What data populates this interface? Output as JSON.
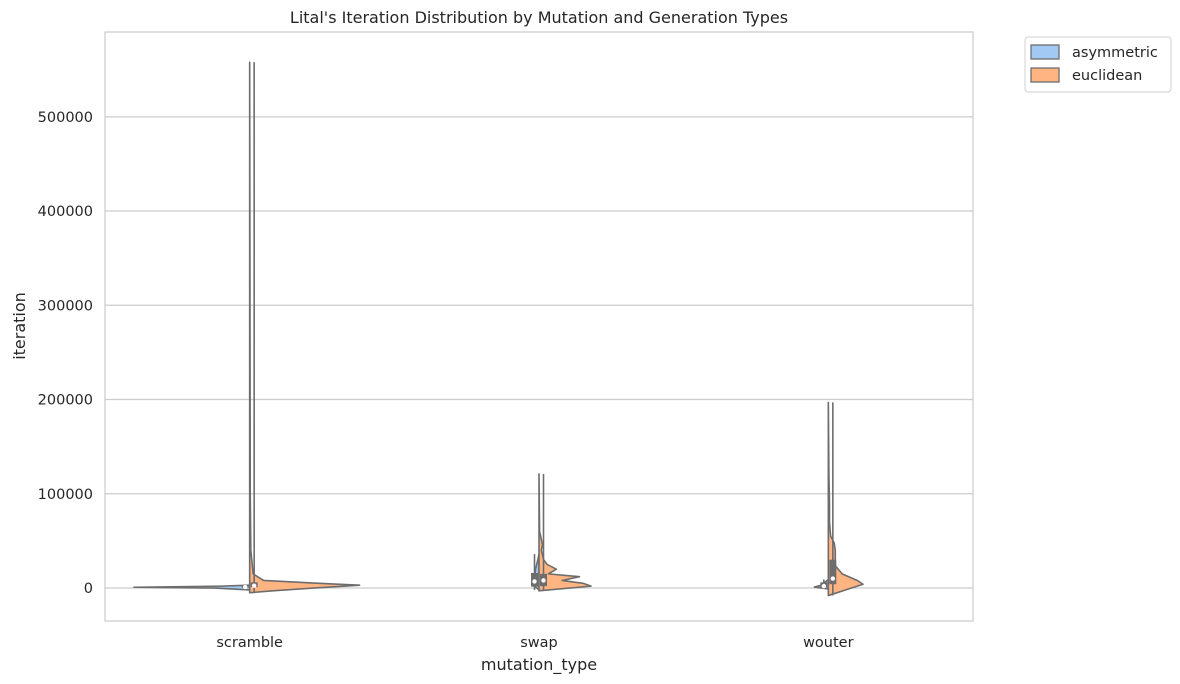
{
  "chart_data": {
    "type": "violin",
    "title": "Lital's Iteration Distribution by Mutation and Generation Types",
    "xlabel": "mutation_type",
    "ylabel": "iteration",
    "categories": [
      "scramble",
      "swap",
      "wouter"
    ],
    "ylim": [
      -35000,
      590000
    ],
    "yticks": [
      0,
      100000,
      200000,
      300000,
      400000,
      500000
    ],
    "ytick_labels": [
      "0",
      "100000",
      "200000",
      "300000",
      "400000",
      "500000"
    ],
    "grid": "horizontal",
    "split": true,
    "legend_placement": "outside upper right",
    "series": [
      {
        "name": "asymmetric",
        "color": "#a1c9f4",
        "groups": [
          {
            "category": "scramble",
            "min": -2000,
            "q1": 500,
            "median": 1000,
            "q3": 2500,
            "max": 3000,
            "density": [
              [
                -2000,
                0.0
              ],
              [
                0,
                0.3
              ],
              [
                800,
                1.0
              ],
              [
                2000,
                0.25
              ],
              [
                3000,
                0.0
              ]
            ]
          },
          {
            "category": "swap",
            "min": -2000,
            "q1": 1500,
            "median": 7000,
            "q3": 16000,
            "max": 36000,
            "density": [
              [
                -2000,
                0.0
              ],
              [
                3000,
                0.05
              ],
              [
                10000,
                0.04
              ],
              [
                20000,
                0.03
              ],
              [
                30000,
                0.01
              ],
              [
                36000,
                0.0
              ]
            ]
          },
          {
            "category": "wouter",
            "min": -1000,
            "q1": 500,
            "median": 2000,
            "q3": 6000,
            "max": 9000,
            "density": [
              [
                -1000,
                0.0
              ],
              [
                1000,
                0.12
              ],
              [
                3000,
                0.06
              ],
              [
                6000,
                0.03
              ],
              [
                9000,
                0.0
              ]
            ]
          }
        ]
      },
      {
        "name": "euclidean",
        "color": "#ffb482",
        "groups": [
          {
            "category": "scramble",
            "min": -5000,
            "q1": 1000,
            "median": 2500,
            "q3": 6000,
            "max": 558000,
            "density": [
              [
                -5000,
                0.0
              ],
              [
                -3000,
                0.2
              ],
              [
                0,
                0.55
              ],
              [
                3000,
                0.95
              ],
              [
                5000,
                0.6
              ],
              [
                8000,
                0.12
              ],
              [
                15000,
                0.03
              ],
              [
                40000,
                0.01
              ],
              [
                100000,
                0.005
              ],
              [
                558000,
                0.0
              ]
            ]
          },
          {
            "category": "swap",
            "min": -3000,
            "q1": 2000,
            "median": 8000,
            "q3": 15000,
            "max": 121000,
            "density": [
              [
                -3000,
                0.0
              ],
              [
                2000,
                0.45
              ],
              [
                5000,
                0.38
              ],
              [
                8000,
                0.2
              ],
              [
                12000,
                0.35
              ],
              [
                15000,
                0.08
              ],
              [
                20000,
                0.15
              ],
              [
                25000,
                0.07
              ],
              [
                30000,
                0.04
              ],
              [
                40000,
                0.02
              ],
              [
                46000,
                0.03
              ],
              [
                60000,
                0.005
              ],
              [
                121000,
                0.0
              ]
            ]
          },
          {
            "category": "wouter",
            "min": -8000,
            "q1": 4000,
            "median": 10000,
            "q3": 30000,
            "max": 197000,
            "density": [
              [
                -8000,
                0.0
              ],
              [
                0,
                0.2
              ],
              [
                4000,
                0.3
              ],
              [
                8000,
                0.25
              ],
              [
                15000,
                0.12
              ],
              [
                25000,
                0.05
              ],
              [
                30000,
                0.06
              ],
              [
                40000,
                0.06
              ],
              [
                48000,
                0.05
              ],
              [
                55000,
                0.02
              ],
              [
                70000,
                0.01
              ],
              [
                90000,
                0.01
              ],
              [
                120000,
                0.005
              ],
              [
                197000,
                0.0
              ]
            ]
          }
        ]
      }
    ]
  }
}
